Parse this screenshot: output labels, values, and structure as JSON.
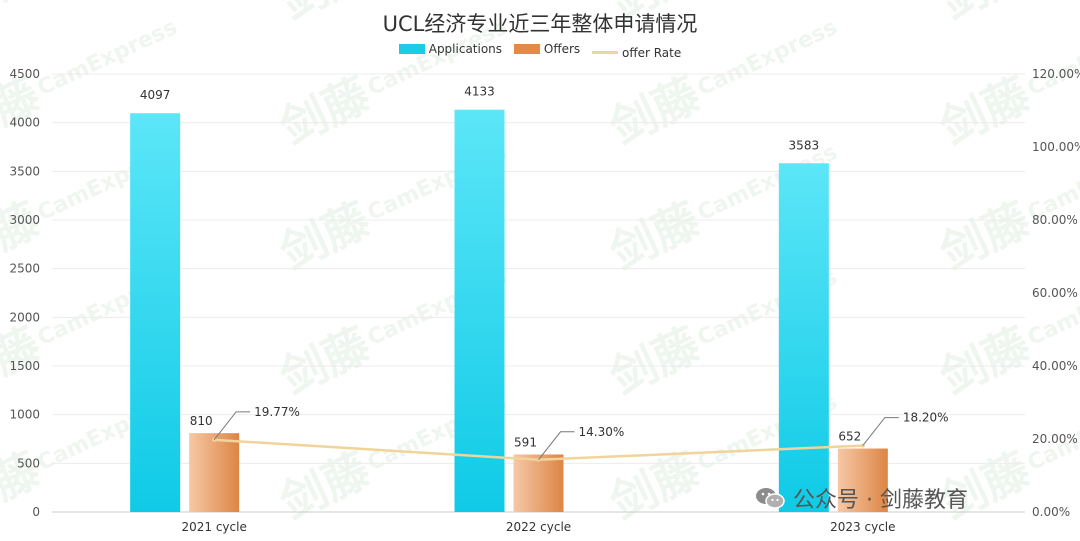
{
  "chart_data": {
    "type": "bar",
    "title": "UCL经济专业近三年整体申请情况",
    "categories": [
      "2021 cycle",
      "2022 cycle",
      "2023 cycle"
    ],
    "series": [
      {
        "name": "Applications",
        "type": "bar",
        "axis": "left",
        "values": [
          4097,
          4133,
          3583
        ],
        "color": "#1ccbe8"
      },
      {
        "name": "Offers",
        "type": "bar",
        "axis": "left",
        "values": [
          810,
          591,
          652
        ],
        "color": "#e08a4c"
      },
      {
        "name": "offer Rate",
        "type": "line",
        "axis": "right",
        "values": [
          19.77,
          14.3,
          18.2
        ],
        "labels": [
          "19.77%",
          "14.30%",
          "18.20%"
        ],
        "color": "#f0d49a"
      }
    ],
    "ylim_left": [
      0,
      4500
    ],
    "left_ticks": [
      "0",
      "500",
      "1000",
      "1500",
      "2000",
      "2500",
      "3000",
      "3500",
      "4000",
      "4500"
    ],
    "ylim_right": [
      0,
      120
    ],
    "right_ticks": [
      "0.00%",
      "20.00%",
      "40.00%",
      "60.00%",
      "80.00%",
      "100.00%",
      "120.00%"
    ],
    "grid": true,
    "legend_position": "top-center"
  },
  "watermark": {
    "logo_text": "剑藤",
    "brand_text": "CamExpress"
  },
  "footer": {
    "text": "公众号 · 剑藤教育",
    "icon": "wechat-icon"
  }
}
